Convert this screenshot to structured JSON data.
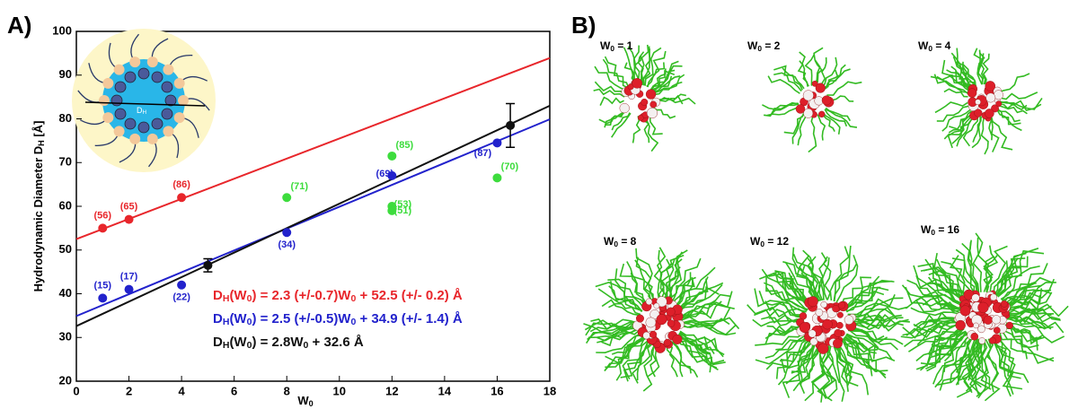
{
  "chart_data": {
    "type": "scatter",
    "xlabel": [
      "W",
      "0"
    ],
    "ylabel": [
      "Hydrodynamic Diameter D",
      "H",
      " [Å]"
    ],
    "xlim": [
      0,
      18
    ],
    "xticks": [
      0,
      2,
      4,
      6,
      8,
      10,
      12,
      14,
      16,
      18
    ],
    "ylim": [
      20,
      100
    ],
    "yticks": [
      20,
      30,
      40,
      50,
      60,
      70,
      80,
      90,
      100
    ],
    "grid": false,
    "series": [
      {
        "color": "#e8262b",
        "x": [
          1,
          2,
          4
        ],
        "values": [
          55,
          57,
          62
        ],
        "labels": [
          "(56)",
          "(65)",
          "(86)"
        ]
      },
      {
        "color": "#2222cc",
        "x": [
          1,
          2,
          4,
          8,
          12,
          16
        ],
        "values": [
          39,
          41,
          42,
          54,
          67,
          74.5
        ],
        "labels": [
          "(15)",
          "(17)",
          "(22)",
          "(34)",
          "(69)",
          "(87)"
        ]
      },
      {
        "color": "#3ddc3d",
        "x": [
          8,
          12,
          12,
          12,
          16
        ],
        "values": [
          62,
          71.5,
          60,
          59,
          66.5
        ],
        "labels": [
          "(71)",
          "(85)",
          "(53)",
          "(51)",
          "(70)"
        ]
      },
      {
        "color": "#111111",
        "x": [
          5,
          16.5
        ],
        "values": [
          46.5,
          78.5
        ],
        "errors": [
          1.5,
          5
        ]
      }
    ],
    "fits": [
      {
        "color": "#e8262b",
        "x": [
          0,
          18
        ],
        "values": [
          52.5,
          93.9
        ]
      },
      {
        "color": "#2222cc",
        "x": [
          0,
          18
        ],
        "values": [
          34.9,
          79.9
        ]
      },
      {
        "color": "#111111",
        "x": [
          0,
          18
        ],
        "values": [
          32.6,
          83.0
        ]
      }
    ],
    "equations": [
      {
        "color": "#e8262b",
        "text": [
          "D",
          "H",
          "(W",
          "0",
          ") = 2.3 (+/-0.7)W",
          "0",
          " + 52.5 (+/- 0.2) Å"
        ]
      },
      {
        "color": "#2222cc",
        "text": [
          "D",
          "H",
          "(W",
          "0",
          ") = 2.5 (+/-0.5)W",
          "0",
          " + 34.9 (+/- 1.4) Å"
        ]
      },
      {
        "color": "#111111",
        "text": [
          "D",
          "H",
          "(W",
          "0",
          ") = 2.8W",
          "0",
          " + 32.6 Å"
        ]
      }
    ],
    "inset_label": [
      "D",
      "H"
    ]
  },
  "panel_labels": [
    "A)",
    "B)"
  ],
  "snapshots": [
    [
      "W",
      "0",
      " = 1"
    ],
    [
      "W",
      "0",
      " = 2"
    ],
    [
      "W",
      "0",
      " = 4"
    ],
    [
      "W",
      "0",
      " = 8"
    ],
    [
      "W",
      "0",
      " = 12"
    ],
    [
      "W",
      "0",
      " = 16"
    ]
  ]
}
